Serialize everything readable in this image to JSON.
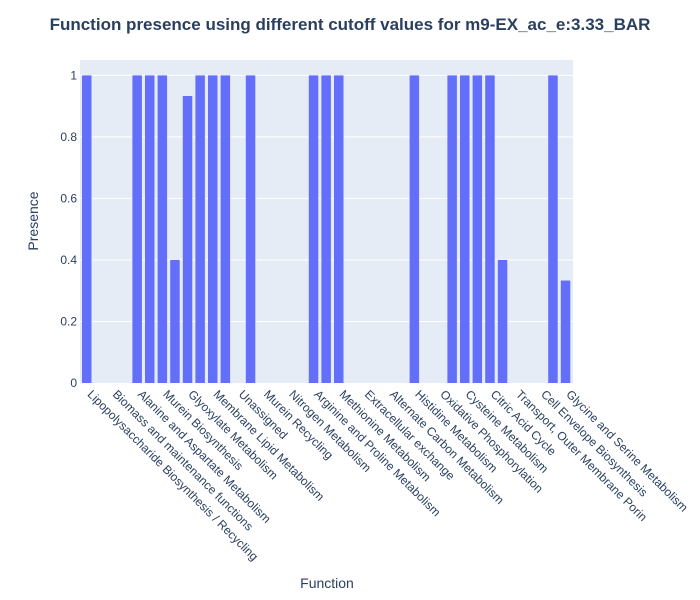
{
  "chart_data": {
    "type": "bar",
    "title": "Function presence using different cutoff values for m9-EX_ac_e:3.33_BAR",
    "xlabel": "Function",
    "ylabel": "Presence",
    "ylim": [
      0,
      1.05
    ],
    "yticks": [
      0,
      0.2,
      0.4,
      0.6,
      0.8,
      1
    ],
    "ytick_labels": [
      "0",
      "0.2",
      "0.4",
      "0.6",
      "0.8",
      "1"
    ],
    "grid": true,
    "colors": {
      "bar": "#636efa",
      "plot_bg": "#e5ecf6",
      "grid": "#ffffff",
      "text": "#2a3f5f"
    },
    "categories": [
      "Lipopolysaccharide Biosynthesis / Recycling",
      "Biomass and maintenance functions",
      "Alanine and Aspartate Metabolism",
      "Murein Biosynthesis",
      "Glyoxylate Metabolism",
      "Membrane Lipid Metabolism",
      "Unassigned",
      "Murein Recycling",
      "Nitrogen Metabolism",
      "Arginine and Proline Metabolism",
      "Methionine Metabolism",
      "Extracellular exchange",
      "Alternate Carbon Metabolism",
      "Histidine Metabolism",
      "Oxidative Phosphorylation",
      "Cysteine Metabolism",
      "Citric Acid Cycle",
      "Transport, Outer Membrane Porin",
      "Cell Envelope Biosynthesis",
      "Glycine and Serine Metabolism"
    ],
    "bars": [
      {
        "category_index": 0,
        "value": 1
      },
      {
        "category_index": 2,
        "value": 1
      },
      {
        "category_index": 2,
        "value": 1
      },
      {
        "category_index": 3,
        "value": 1
      },
      {
        "category_index": 3,
        "value": 0.4
      },
      {
        "category_index": 4,
        "value": 0.933
      },
      {
        "category_index": 4,
        "value": 1
      },
      {
        "category_index": 5,
        "value": 1
      },
      {
        "category_index": 5,
        "value": 1
      },
      {
        "category_index": 6,
        "value": 1
      },
      {
        "category_index": 9,
        "value": 1
      },
      {
        "category_index": 9,
        "value": 1
      },
      {
        "category_index": 10,
        "value": 1
      },
      {
        "category_index": 13,
        "value": 1
      },
      {
        "category_index": 14,
        "value": 1
      },
      {
        "category_index": 15,
        "value": 1
      },
      {
        "category_index": 15,
        "value": 1
      },
      {
        "category_index": 16,
        "value": 1
      },
      {
        "category_index": 16,
        "value": 0.4
      },
      {
        "category_index": 18,
        "value": 1
      },
      {
        "category_index": 19,
        "value": 0.333
      }
    ]
  }
}
